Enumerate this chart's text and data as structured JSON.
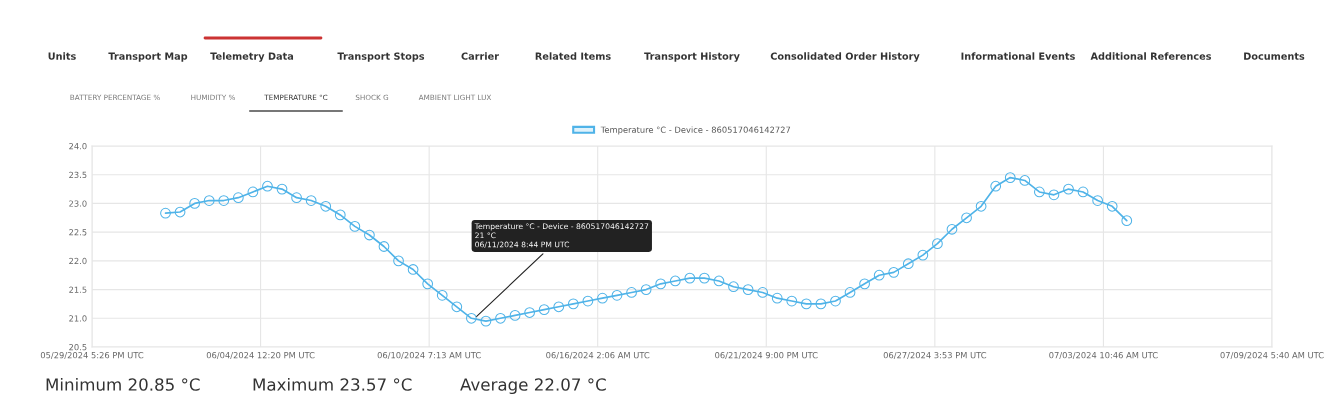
{
  "chart_data": {
    "type": "line",
    "x": [
      "2024-06-01T06:00",
      "2024-06-01T18:00",
      "2024-06-02T06:00",
      "2024-06-02T18:00",
      "2024-06-03T06:00",
      "2024-06-03T18:00",
      "2024-06-04T06:00",
      "2024-06-04T18:00",
      "2024-06-05T06:00",
      "2024-06-05T18:00",
      "2024-06-06T06:00",
      "2024-06-06T18:00",
      "2024-06-07T06:00",
      "2024-06-07T18:00",
      "2024-06-08T06:00",
      "2024-06-08T18:00",
      "2024-06-09T06:00",
      "2024-06-09T18:00",
      "2024-06-10T06:00",
      "2024-06-10T18:00",
      "2024-06-11T06:00",
      "2024-06-11T18:00",
      "2024-06-12T06:00",
      "2024-06-12T18:00",
      "2024-06-13T06:00",
      "2024-06-13T18:00",
      "2024-06-14T06:00",
      "2024-06-14T18:00",
      "2024-06-15T06:00",
      "2024-06-15T18:00",
      "2024-06-16T06:00",
      "2024-06-16T18:00",
      "2024-06-17T06:00",
      "2024-06-17T18:00",
      "2024-06-18T06:00",
      "2024-06-18T18:00",
      "2024-06-19T06:00",
      "2024-06-19T18:00",
      "2024-06-20T06:00",
      "2024-06-20T18:00",
      "2024-06-21T06:00",
      "2024-06-21T18:00",
      "2024-06-22T06:00",
      "2024-06-22T18:00",
      "2024-06-23T06:00",
      "2024-06-23T18:00",
      "2024-06-24T06:00",
      "2024-06-24T18:00",
      "2024-06-25T06:00",
      "2024-06-25T18:00",
      "2024-06-26T06:00",
      "2024-06-26T18:00",
      "2024-06-27T06:00",
      "2024-06-27T18:00",
      "2024-06-28T06:00",
      "2024-06-28T18:00",
      "2024-06-29T06:00",
      "2024-06-29T18:00",
      "2024-06-30T06:00",
      "2024-06-30T18:00",
      "2024-07-01T06:00",
      "2024-07-01T18:00",
      "2024-07-02T06:00",
      "2024-07-02T18:00",
      "2024-07-03T06:00",
      "2024-07-03T18:00",
      "2024-07-04T06:00"
    ],
    "series": [
      {
        "name": "Temperature °C - Device - 860517046142727",
        "color": "#4fb3e8",
        "values": [
          22.83,
          22.85,
          23.0,
          23.05,
          23.05,
          23.1,
          23.2,
          23.3,
          23.25,
          23.1,
          23.05,
          22.95,
          22.8,
          22.6,
          22.45,
          22.25,
          22.0,
          21.85,
          21.6,
          21.4,
          21.2,
          21.0,
          20.95,
          21.0,
          21.05,
          21.1,
          21.15,
          21.2,
          21.25,
          21.3,
          21.35,
          21.4,
          21.45,
          21.5,
          21.6,
          21.65,
          21.7,
          21.7,
          21.65,
          21.55,
          21.5,
          21.45,
          21.35,
          21.3,
          21.25,
          21.25,
          21.3,
          21.45,
          21.6,
          21.75,
          21.8,
          21.95,
          22.1,
          22.3,
          22.55,
          22.75,
          22.95,
          23.3,
          23.45,
          23.4,
          23.2,
          23.15,
          23.25,
          23.2,
          23.05,
          22.95,
          22.7
        ]
      }
    ],
    "xlim": [
      "2024-05-29T17:26",
      "2024-07-09T05:40"
    ],
    "xticks": [
      {
        "value": "2024-05-29T17:26",
        "label": "05/29/2024 5:26 PM UTC"
      },
      {
        "value": "2024-06-04T12:20",
        "label": "06/04/2024 12:20 PM UTC"
      },
      {
        "value": "2024-06-10T07:13",
        "label": "06/10/2024 7:13 AM UTC"
      },
      {
        "value": "2024-06-16T02:06",
        "label": "06/16/2024 2:06 AM UTC"
      },
      {
        "value": "2024-06-21T21:00",
        "label": "06/21/2024 9:00 PM UTC"
      },
      {
        "value": "2024-06-27T15:53",
        "label": "06/27/2024 3:53 PM UTC"
      },
      {
        "value": "2024-07-03T10:46",
        "label": "07/03/2024 10:46 AM UTC"
      },
      {
        "value": "2024-07-09T05:40",
        "label": "07/09/2024 5:40 AM UTC"
      }
    ],
    "ylim": [
      20.5,
      24.0
    ],
    "yticks": [
      {
        "value": 20.5,
        "label": "20.5"
      },
      {
        "value": 21.0,
        "label": "21.0"
      },
      {
        "value": 21.5,
        "label": "21.5"
      },
      {
        "value": 22.0,
        "label": "22.0"
      },
      {
        "value": 22.5,
        "label": "22.5"
      },
      {
        "value": 23.0,
        "label": "23.0"
      },
      {
        "value": 23.5,
        "label": "23.5"
      },
      {
        "value": 24.0,
        "label": "24.0"
      }
    ],
    "grid": true,
    "legend": "top",
    "marker": "circle",
    "line_style": "solid",
    "annotations": [
      "Units",
      "Transport Map",
      "Telemetry Data",
      "Transport Stops",
      "Carrier",
      "Related Items",
      "Transport History",
      "Consolidated Order History",
      "Informational Events",
      "Additional References",
      "Documents",
      "BATTERY PERCENTAGE %",
      "HUMIDITY %",
      "TEMPERATURE °C",
      "SHOCK G",
      "AMBIENT LIGHT LUX",
      "Minimum 20.85 °C",
      "Maximum 23.57 °C",
      "Average 22.07 °C",
      {
        "text": "Temperature °C - Device - 860517046142727\n21 °C\n06/11/2024 8:44 PM UTC",
        "x": "2024-06-11T20:44",
        "y": 21.0
      }
    ]
  }
}
